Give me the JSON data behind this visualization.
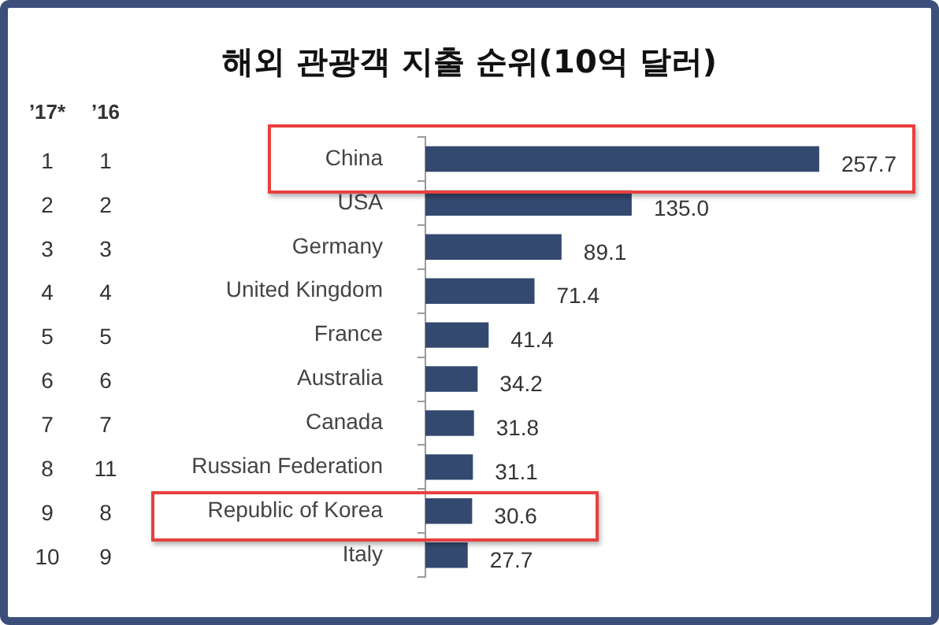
{
  "chart_data": {
    "type": "bar",
    "orientation": "horizontal",
    "title": "해외 관광객 지출 순위(10억 달러)",
    "categories": [
      "China",
      "USA",
      "Germany",
      "United Kingdom",
      "France",
      "Australia",
      "Canada",
      "Russian Federation",
      "Republic of Korea",
      "Italy"
    ],
    "values": [
      257.7,
      135.0,
      89.1,
      71.4,
      41.4,
      34.2,
      31.8,
      31.1,
      30.6,
      27.7
    ],
    "value_labels": [
      "257.7",
      "135.0",
      "89.1",
      "71.4",
      "41.4",
      "34.2",
      "31.8",
      "31.1",
      "30.6",
      "27.7"
    ],
    "color": "#34496f",
    "tick_labels": "y",
    "grid": false,
    "legend": false,
    "annotations": [
      "’17*",
      "’16",
      "1",
      "2",
      "3",
      "4",
      "5",
      "6",
      "7",
      "8",
      "9",
      "10",
      "1",
      "2",
      "3",
      "4",
      "5",
      "6",
      "7",
      "11",
      "8",
      "9"
    ]
  }
}
